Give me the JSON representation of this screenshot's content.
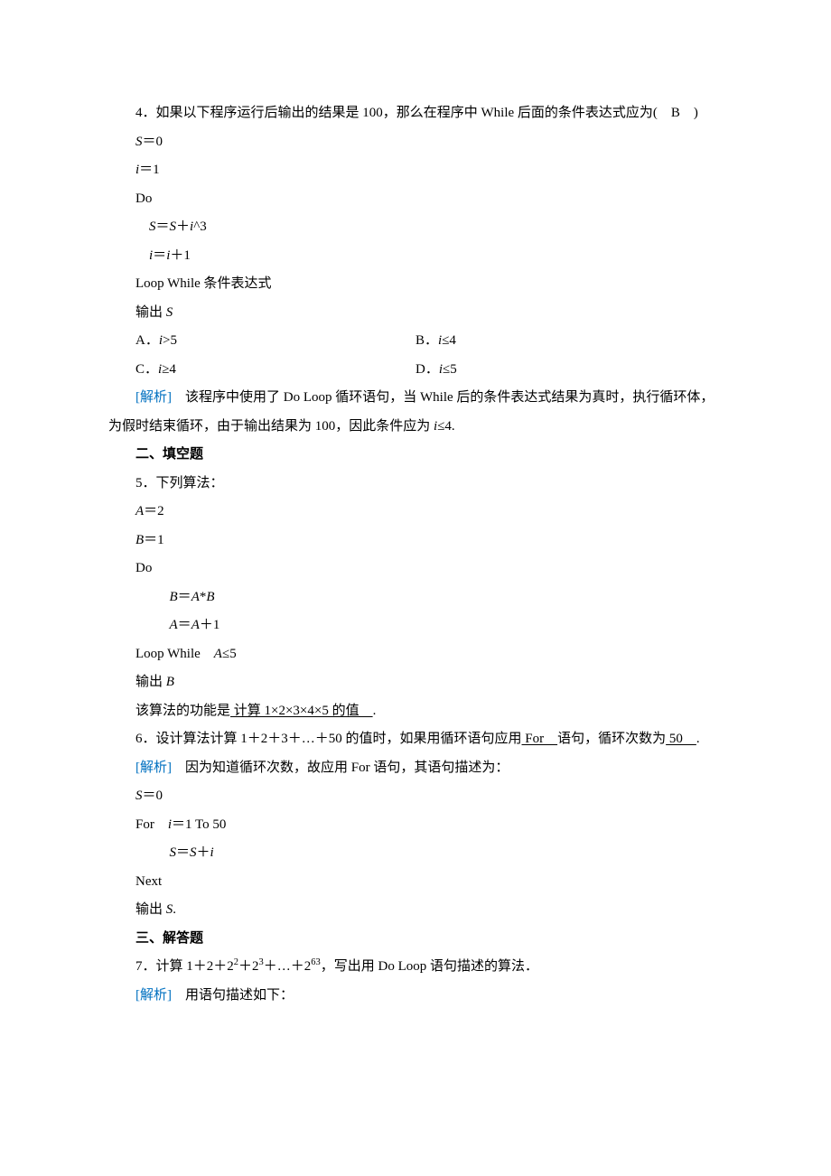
{
  "colors": {
    "text": "#000000",
    "analysis": "#0070c0",
    "background": "#ffffff"
  },
  "typography": {
    "body_fontsize_pt": 11,
    "body_font": "SimSun",
    "line_height": 2.1
  },
  "q4": {
    "stem_a": "4．如果以下程序运行后输出的结果是 100，那么在程序中 While 后面的条件表达式应为(　B　)",
    "code": {
      "l1": "S＝0",
      "l2": "i＝1",
      "l3": "Do",
      "l4": "S＝S＋i^3",
      "l5": "i＝i＋1",
      "l6": "Loop While 条件表达式",
      "l7": "输出 S"
    },
    "opts": {
      "A": "A．i>5",
      "B": "B．i≤4",
      "C": "C．i≥4",
      "D": "D．i≤5"
    },
    "analysis_label": "[解析]",
    "analysis_body": "　该程序中使用了 Do Loop 循环语句，当 While 后的条件表达式结果为真时，执行循环体，为假时结束循环，由于输出结果为 100，因此条件应为 i≤4."
  },
  "section2": "二、填空题",
  "q5": {
    "stem": "5．下列算法：",
    "code": {
      "l1": "A＝2",
      "l2": "B＝1",
      "l3": "Do",
      "l4": "B＝A*B",
      "l5": "A＝A＋1",
      "l6": "Loop While　A≤5",
      "l7": "输出 B"
    },
    "tail_a": "该算法的功能是",
    "tail_u": " 计算 1×2×3×4×5 的值　",
    "tail_b": "."
  },
  "q6": {
    "stem_a": "6．设计算法计算 1＋2＋3＋…＋50 的值时，如果用循环语句应用",
    "stem_u1": " For　",
    "stem_b": "语句，循环次数为",
    "stem_u2": " 50　",
    "stem_c": ".",
    "analysis_label": "[解析]",
    "analysis_body": "　因为知道循环次数，故应用 For 语句，其语句描述为：",
    "code": {
      "l1": "S＝0",
      "l2": "For　i＝1 To 50",
      "l3": "S＝S＋i",
      "l4": "Next",
      "l5": "输出 S."
    }
  },
  "section3": "三、解答题",
  "q7": {
    "stem": "7．计算 1＋2＋2²＋2³＋…＋2⁶³，写出用 Do Loop 语句描述的算法．",
    "analysis_label": "[解析]",
    "analysis_body": "　用语句描述如下："
  }
}
